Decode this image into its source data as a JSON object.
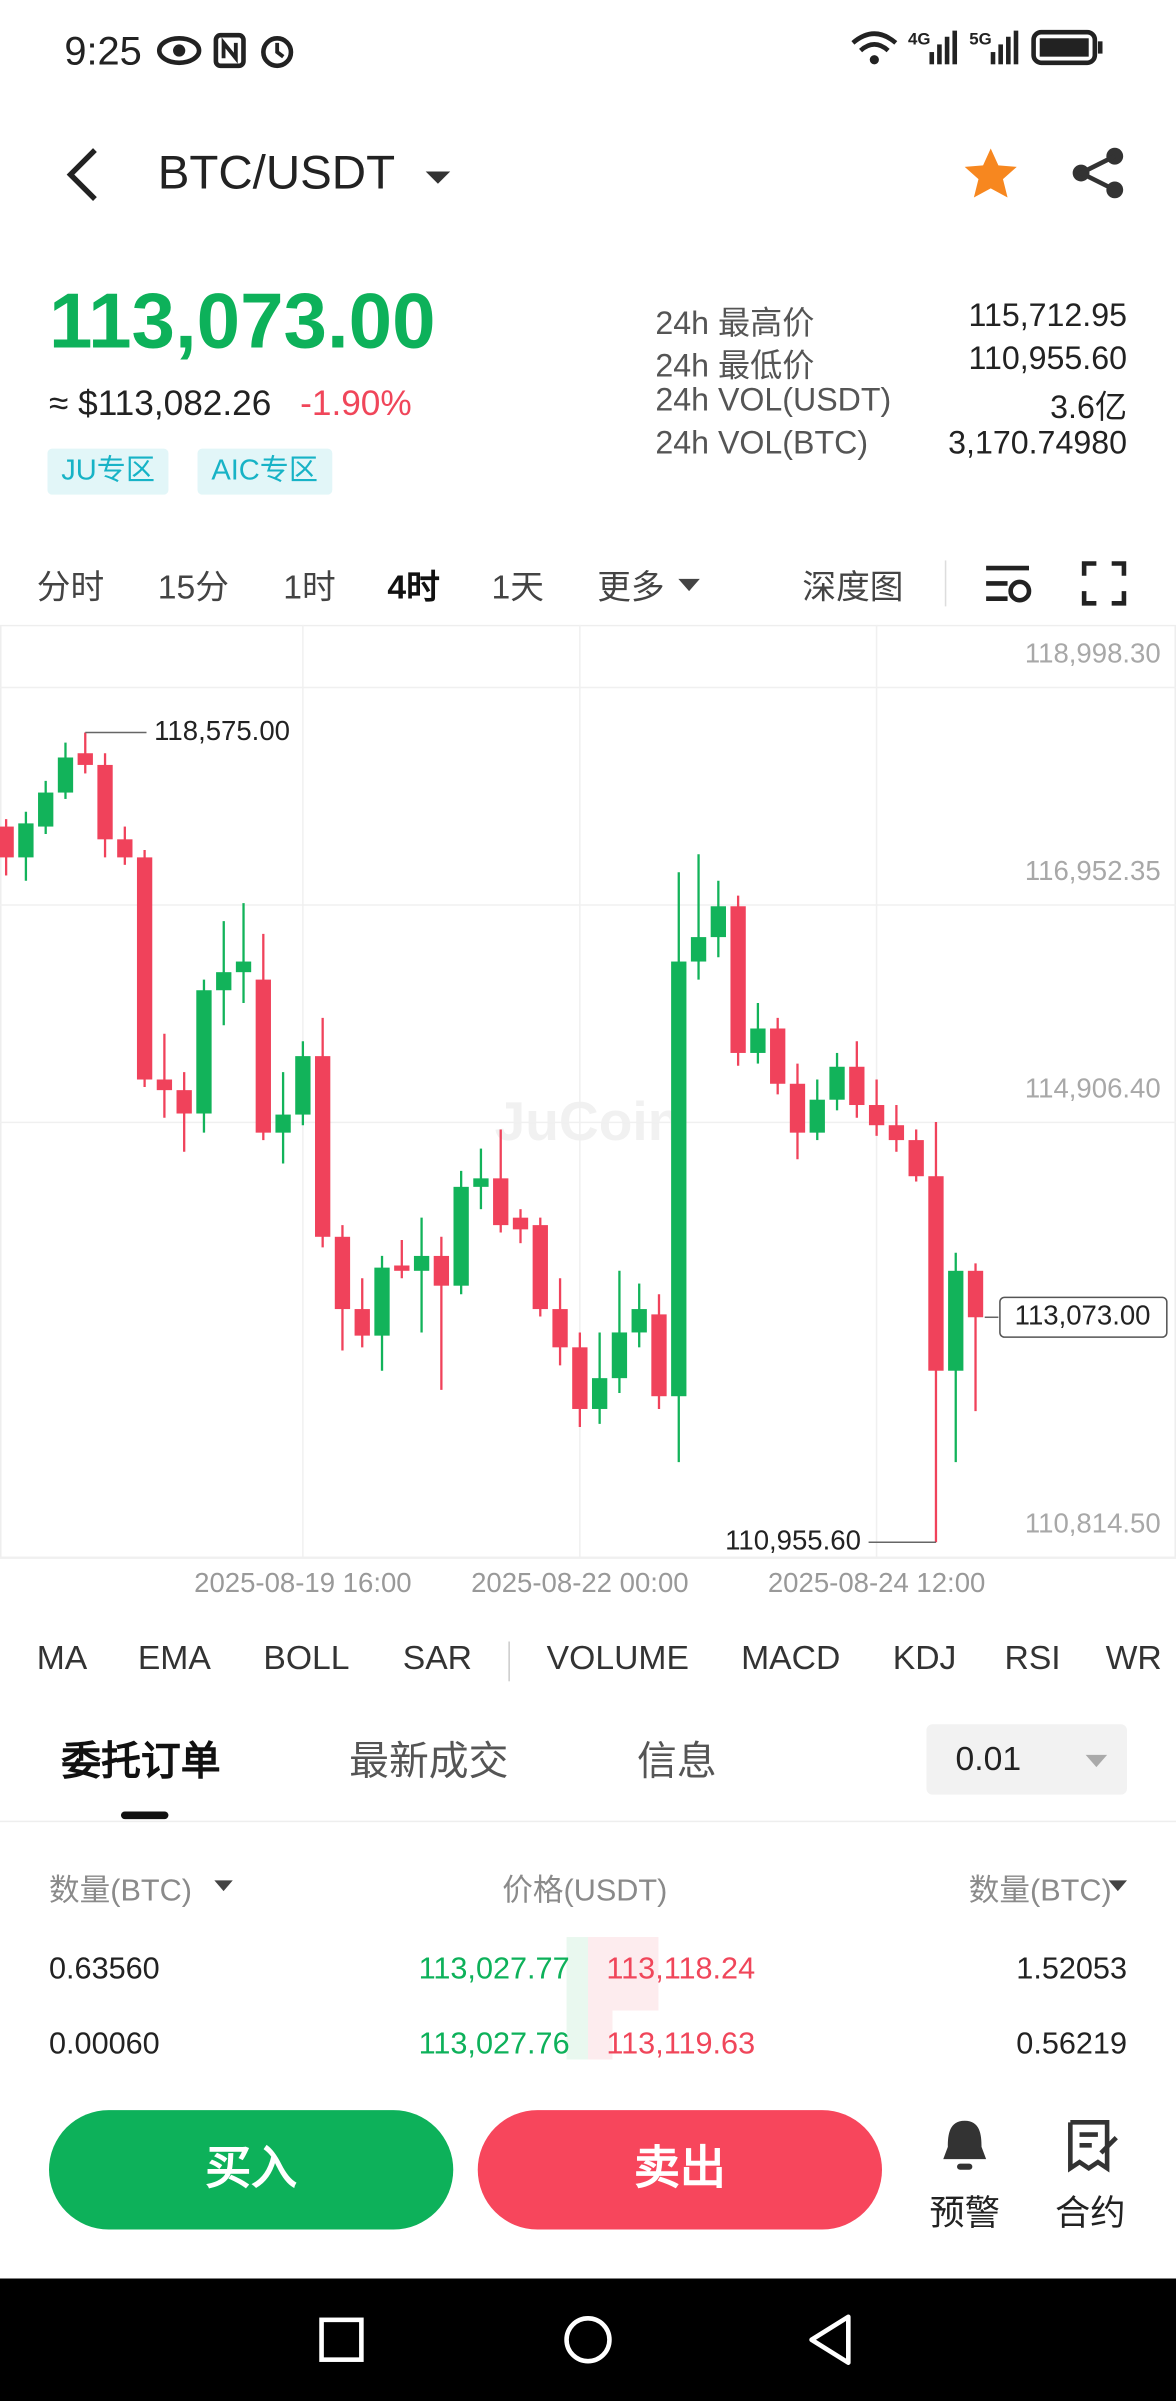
{
  "status_bar": {
    "time": "9:25"
  },
  "header": {
    "pair": "BTC/USDT"
  },
  "ticker": {
    "price": "113,073.00",
    "usd": "≈ $113,082.26",
    "change": "-1.90%",
    "tags": [
      "JU专区",
      "AIC专区"
    ],
    "stats": [
      {
        "label": "24h 最高价",
        "value": "115,712.95"
      },
      {
        "label": "24h 最低价",
        "value": "110,955.60"
      },
      {
        "label": "24h VOL(USDT)",
        "value": "3.6亿"
      },
      {
        "label": "24h VOL(BTC)",
        "value": "3,170.74980"
      }
    ]
  },
  "timeframes": {
    "items": [
      "分时",
      "15分",
      "1时",
      "4时",
      "1天",
      "更多"
    ],
    "active": 3,
    "depth": "深度图"
  },
  "chart_data": {
    "type": "candlestick",
    "watermark": "JuCoin",
    "grid": true,
    "up_color": "#12b35a",
    "down_color": "#f0425b",
    "categories": [
      null,
      null,
      null,
      null,
      null,
      null,
      null,
      null,
      null,
      null,
      null,
      null,
      null,
      null,
      null,
      "2025-08-19 16:00",
      null,
      null,
      null,
      null,
      null,
      null,
      null,
      null,
      null,
      null,
      null,
      null,
      null,
      "2025-08-22 00:00",
      null,
      null,
      null,
      null,
      null,
      null,
      null,
      null,
      null,
      null,
      null,
      null,
      null,
      null,
      "2025-08-24 12:00",
      null,
      null,
      null,
      null,
      null
    ],
    "candles": [
      {
        "open": 117690,
        "high": 117760,
        "low": 117230,
        "close": 117400
      },
      {
        "open": 117400,
        "high": 117830,
        "low": 117180,
        "close": 117720
      },
      {
        "open": 117690,
        "high": 118120,
        "low": 117620,
        "close": 118010
      },
      {
        "open": 118010,
        "high": 118480,
        "low": 117950,
        "close": 118340
      },
      {
        "open": 118380,
        "high": 118575,
        "low": 118190,
        "close": 118270
      },
      {
        "open": 118270,
        "high": 118380,
        "low": 117400,
        "close": 117570
      },
      {
        "open": 117570,
        "high": 117690,
        "low": 117330,
        "close": 117400
      },
      {
        "open": 117400,
        "high": 117470,
        "low": 115240,
        "close": 115310
      },
      {
        "open": 115310,
        "high": 115740,
        "low": 114950,
        "close": 115210
      },
      {
        "open": 115210,
        "high": 115380,
        "low": 114630,
        "close": 114990
      },
      {
        "open": 114990,
        "high": 116250,
        "low": 114810,
        "close": 116150
      },
      {
        "open": 116150,
        "high": 116800,
        "low": 115820,
        "close": 116320
      },
      {
        "open": 116320,
        "high": 116970,
        "low": 116030,
        "close": 116420
      },
      {
        "open": 116250,
        "high": 116680,
        "low": 114740,
        "close": 114810
      },
      {
        "open": 114810,
        "high": 115380,
        "low": 114520,
        "close": 114980
      },
      {
        "open": 114980,
        "high": 115670,
        "low": 114880,
        "close": 115530
      },
      {
        "open": 115530,
        "high": 115890,
        "low": 113730,
        "close": 113830
      },
      {
        "open": 113830,
        "high": 113940,
        "low": 112760,
        "close": 113150
      },
      {
        "open": 113150,
        "high": 113440,
        "low": 112790,
        "close": 112900
      },
      {
        "open": 112900,
        "high": 113650,
        "low": 112570,
        "close": 113540
      },
      {
        "open": 113560,
        "high": 113800,
        "low": 113440,
        "close": 113510
      },
      {
        "open": 113510,
        "high": 114010,
        "low": 112930,
        "close": 113650
      },
      {
        "open": 113650,
        "high": 113830,
        "low": 112390,
        "close": 113370
      },
      {
        "open": 113370,
        "high": 114450,
        "low": 113290,
        "close": 114300
      },
      {
        "open": 114300,
        "high": 114660,
        "low": 114090,
        "close": 114380
      },
      {
        "open": 114380,
        "high": 114840,
        "low": 113870,
        "close": 113940
      },
      {
        "open": 114010,
        "high": 114090,
        "low": 113770,
        "close": 113900
      },
      {
        "open": 113940,
        "high": 114010,
        "low": 113080,
        "close": 113150
      },
      {
        "open": 113150,
        "high": 113440,
        "low": 112620,
        "close": 112790
      },
      {
        "open": 112790,
        "high": 112930,
        "low": 112040,
        "close": 112210
      },
      {
        "open": 112210,
        "high": 112930,
        "low": 112070,
        "close": 112500
      },
      {
        "open": 112500,
        "high": 113510,
        "low": 112360,
        "close": 112930
      },
      {
        "open": 112930,
        "high": 113390,
        "low": 112790,
        "close": 113150
      },
      {
        "open": 113100,
        "high": 113290,
        "low": 112210,
        "close": 112330
      },
      {
        "open": 112330,
        "high": 117260,
        "low": 111710,
        "close": 116420
      },
      {
        "open": 116420,
        "high": 117430,
        "low": 116250,
        "close": 116650
      },
      {
        "open": 116650,
        "high": 117180,
        "low": 116460,
        "close": 116940
      },
      {
        "open": 116940,
        "high": 117040,
        "low": 115440,
        "close": 115560
      },
      {
        "open": 115560,
        "high": 116030,
        "low": 115460,
        "close": 115790
      },
      {
        "open": 115790,
        "high": 115890,
        "low": 115170,
        "close": 115270
      },
      {
        "open": 115270,
        "high": 115460,
        "low": 114560,
        "close": 114810
      },
      {
        "open": 114810,
        "high": 115310,
        "low": 114740,
        "close": 115120
      },
      {
        "open": 115120,
        "high": 115560,
        "low": 115020,
        "close": 115430
      },
      {
        "open": 115430,
        "high": 115670,
        "low": 114950,
        "close": 115070
      },
      {
        "open": 115070,
        "high": 115310,
        "low": 114780,
        "close": 114880
      },
      {
        "open": 114880,
        "high": 115070,
        "low": 114630,
        "close": 114740
      },
      {
        "open": 114740,
        "high": 114840,
        "low": 114350,
        "close": 114400
      },
      {
        "open": 114400,
        "high": 114910,
        "low": 110955.6,
        "close": 112570
      },
      {
        "open": 112570,
        "high": 113680,
        "low": 111710,
        "close": 113510
      },
      {
        "open": 113510,
        "high": 113580,
        "low": 112190,
        "close": 113073
      }
    ],
    "ylim": [
      110814.5,
      119589
    ],
    "yticks": [
      {
        "value": 110814.5,
        "label": "110,814.50"
      },
      {
        "value": 114906.4,
        "label": "114,906.40"
      },
      {
        "value": 116952.35,
        "label": "116,952.35"
      },
      {
        "value": 118998.3,
        "label": "118,998.30"
      }
    ],
    "high": {
      "value": 118575,
      "label": "118,575.00"
    },
    "low": {
      "value": 110955.6,
      "label": "110,955.60"
    },
    "last": {
      "value": 113073,
      "label": "113,073.00"
    }
  },
  "indicators": {
    "main": [
      "MA",
      "EMA",
      "BOLL",
      "SAR"
    ],
    "sub": [
      "VOLUME",
      "MACD",
      "KDJ",
      "RSI",
      "WR"
    ]
  },
  "tabs": {
    "items": [
      "委托订单",
      "最新成交",
      "信息"
    ],
    "active": 0,
    "precision": "0.01"
  },
  "order_book": {
    "headers": [
      "数量(BTC)",
      "价格(USDT)",
      "数量(BTC)"
    ],
    "rows": [
      [
        "0.63560",
        "113,027.77",
        "113,118.24",
        "1.52053"
      ],
      [
        "0.00060",
        "113,027.76",
        "113,119.63",
        "0.56219"
      ]
    ]
  },
  "actions": {
    "buy": "买入",
    "sell": "卖出",
    "alert": "预警",
    "contract": "合约"
  }
}
